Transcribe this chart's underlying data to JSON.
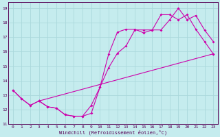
{
  "xlabel": "Windchill (Refroidissement éolien,°C)",
  "xlim": [
    -0.5,
    23.5
  ],
  "ylim": [
    11,
    19.4
  ],
  "xticks": [
    0,
    1,
    2,
    3,
    4,
    5,
    6,
    7,
    8,
    9,
    10,
    11,
    12,
    13,
    14,
    15,
    16,
    17,
    18,
    19,
    20,
    21,
    22,
    23
  ],
  "yticks": [
    11,
    12,
    13,
    14,
    15,
    16,
    17,
    18,
    19
  ],
  "background_color": "#c5ecee",
  "grid_color": "#aad8dc",
  "line_color": "#cc00aa",
  "curve1_x": [
    0,
    1,
    2,
    3,
    4,
    5,
    6,
    7,
    8,
    9,
    10,
    11,
    12,
    13,
    14,
    15,
    16,
    17,
    18,
    19,
    20,
    21,
    22,
    23
  ],
  "curve1_y": [
    13.35,
    12.75,
    12.3,
    12.6,
    12.2,
    12.1,
    11.65,
    11.55,
    11.55,
    11.75,
    13.55,
    14.9,
    15.9,
    16.4,
    17.5,
    17.5,
    17.5,
    17.5,
    18.2,
    19.0,
    18.2,
    18.5,
    17.5,
    16.7
  ],
  "curve2_x": [
    0,
    1,
    2,
    3,
    4,
    5,
    6,
    7,
    8,
    9,
    10,
    11,
    12,
    13,
    14,
    15,
    16,
    17,
    18,
    19,
    20,
    21,
    22,
    23
  ],
  "curve2_y": [
    13.35,
    12.75,
    12.3,
    12.6,
    12.2,
    12.1,
    11.65,
    11.55,
    11.55,
    12.3,
    13.55,
    15.85,
    17.35,
    17.55,
    17.55,
    17.3,
    17.5,
    18.55,
    18.55,
    18.2,
    18.55,
    17.55,
    16.7,
    15.85
  ],
  "curve3_x": [
    3,
    23
  ],
  "curve3_y": [
    12.6,
    15.85
  ],
  "figsize": [
    3.2,
    2.0
  ],
  "dpi": 100
}
